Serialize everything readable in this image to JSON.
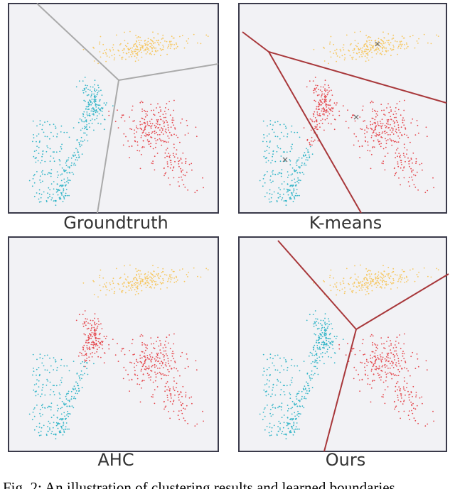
{
  "panels": [
    {
      "label": "Groundtruth"
    },
    {
      "label": "K-means"
    },
    {
      "label": "AHC"
    },
    {
      "label": "Ours"
    }
  ],
  "caption": "Fig. 2: An illustration of clustering results and learned boundaries"
}
